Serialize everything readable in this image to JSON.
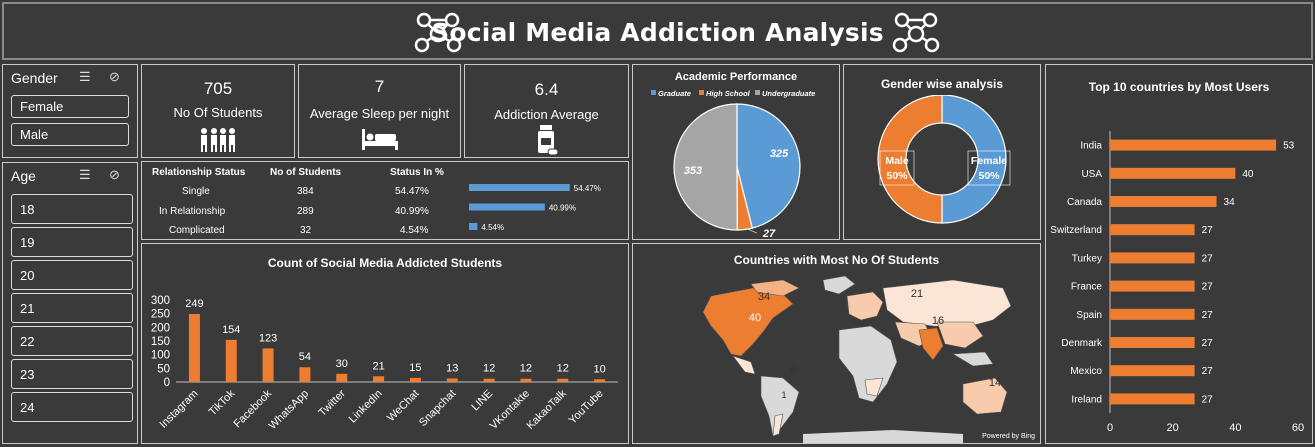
{
  "header": {
    "title": "Social Media Addiction Analysis"
  },
  "gender_slicer": {
    "label": "Gender",
    "items": [
      "Female",
      "Male"
    ]
  },
  "age_slicer": {
    "label": "Age",
    "items": [
      "18",
      "19",
      "20",
      "21",
      "22",
      "23",
      "24"
    ]
  },
  "kpis": [
    {
      "value": "705",
      "label": "No Of Students",
      "icon": "students-icon"
    },
    {
      "value": "7",
      "label": "Average Sleep per night",
      "icon": "bed-icon"
    },
    {
      "value": "6.4",
      "label": "Addiction Average",
      "icon": "medicine-icon"
    }
  ],
  "relationship_table": {
    "headers": [
      "Relationship Status",
      "No of Students",
      "Status In %"
    ],
    "rows": [
      {
        "status": "Single",
        "count": "384",
        "pct": "54.47%",
        "value": 54.47
      },
      {
        "status": "In Relationship",
        "count": "289",
        "pct": "40.99%",
        "value": 40.99
      },
      {
        "status": "Complicated",
        "count": "32",
        "pct": "4.54%",
        "value": 4.54
      }
    ]
  },
  "academic": {
    "title": "Academic Performance",
    "legend": [
      "Graduate",
      "High School",
      "Undergraduate"
    ],
    "colors": [
      "#5b9bd5",
      "#ed7d31",
      "#a5a5a5"
    ],
    "values": [
      325,
      27,
      353
    ],
    "labels": [
      "325",
      "27",
      "353"
    ]
  },
  "gender_chart": {
    "title": "Gender wise analysis",
    "slices": [
      {
        "name": "Female",
        "pct": "50%",
        "value": 50,
        "color": "#5b9bd5"
      },
      {
        "name": "Male",
        "pct": "50%",
        "value": 50,
        "color": "#ed7d31"
      }
    ]
  },
  "countries_map": {
    "title": "Countries with Most No Of Students",
    "labels": [
      "34",
      "40",
      "21",
      "16",
      "8",
      "14",
      "1"
    ],
    "credit": "Powered by Bing"
  },
  "chart_data": [
    {
      "type": "bar",
      "title": "Count of Social Media Addicted Students",
      "categories": [
        "Instagram",
        "TikTok",
        "Facebook",
        "WhatsApp",
        "Twitter",
        "LinkedIn",
        "WeChat",
        "Snapchat",
        "LINE",
        "VKontakte",
        "KakaoTalk",
        "YouTube"
      ],
      "values": [
        249,
        154,
        123,
        54,
        30,
        21,
        15,
        13,
        12,
        12,
        12,
        10
      ],
      "ylim": [
        0,
        300
      ],
      "yticks": [
        "0",
        "50",
        "100",
        "150",
        "200",
        "250",
        "300"
      ],
      "color": "#ed7d31"
    },
    {
      "type": "bar",
      "orientation": "horizontal",
      "title": "Top 10 countries by Most Users",
      "categories": [
        "India",
        "USA",
        "Canada",
        "Switzerland",
        "Turkey",
        "France",
        "Spain",
        "Denmark",
        "Mexico",
        "Ireland"
      ],
      "values": [
        53,
        40,
        34,
        27,
        27,
        27,
        27,
        27,
        27,
        27
      ],
      "xlim": [
        0,
        60
      ],
      "xticks": [
        "0",
        "20",
        "40",
        "60"
      ],
      "color": "#ed7d31"
    }
  ]
}
